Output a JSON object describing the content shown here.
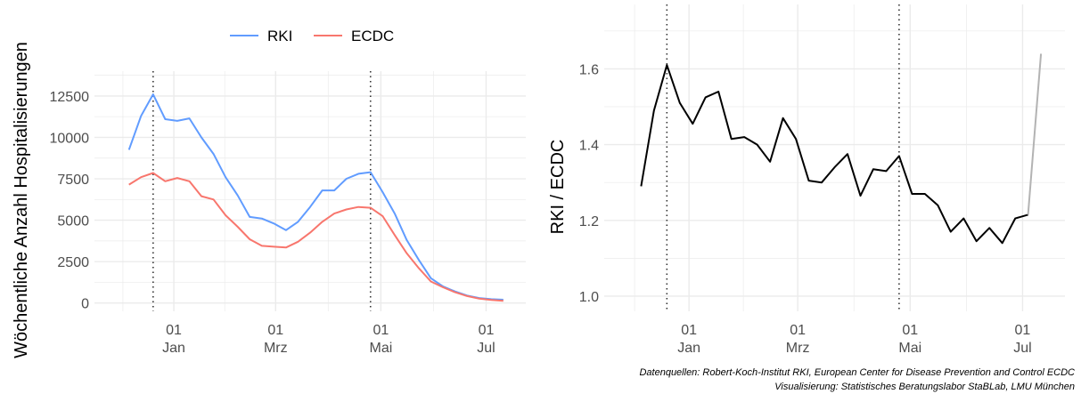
{
  "colors": {
    "rki": "#619cff",
    "ecdc": "#f8766d",
    "ratio": "#000000",
    "ratio_partial": "#b3b3b3",
    "grid": "#ebebeb",
    "vline": "#333333"
  },
  "caption": {
    "line1": "Datenquellen: Robert-Koch-Institut RKI, European Center for Disease Prevention and Control ECDC",
    "line2": "Visualisierung: Statistisches Beratungslabor StaBLab, LMU München"
  },
  "chart_data": [
    {
      "type": "line",
      "ylabel": "Wöchentliche Anzahl Hospitalisierungen",
      "xlabel": "",
      "legend_position": "top",
      "x_ticks": [
        {
          "date": "2022-01-01",
          "day": "01",
          "month": "Jan"
        },
        {
          "date": "2022-03-01",
          "day": "01",
          "month": "Mrz"
        },
        {
          "date": "2022-05-01",
          "day": "01",
          "month": "Mai"
        },
        {
          "date": "2022-07-01",
          "day": "01",
          "month": "Jul"
        }
      ],
      "y_ticks": [
        0,
        2500,
        5000,
        7500,
        10000,
        12500
      ],
      "ylim": [
        -500,
        14000
      ],
      "xlim": [
        "2021-11-16",
        "2022-07-24"
      ],
      "vlines": [
        "2021-12-20",
        "2022-04-25"
      ],
      "x": [
        "2021-12-06",
        "2021-12-13",
        "2021-12-20",
        "2021-12-27",
        "2022-01-03",
        "2022-01-10",
        "2022-01-17",
        "2022-01-24",
        "2022-01-31",
        "2022-02-07",
        "2022-02-14",
        "2022-02-21",
        "2022-02-28",
        "2022-03-07",
        "2022-03-14",
        "2022-03-21",
        "2022-03-28",
        "2022-04-04",
        "2022-04-11",
        "2022-04-18",
        "2022-04-25",
        "2022-05-02",
        "2022-05-09",
        "2022-05-16",
        "2022-05-23",
        "2022-05-30",
        "2022-06-06",
        "2022-06-13",
        "2022-06-20",
        "2022-06-27",
        "2022-07-04",
        "2022-07-11"
      ],
      "series": [
        {
          "name": "RKI",
          "values": [
            9250,
            11300,
            12600,
            11100,
            11000,
            11150,
            10000,
            9000,
            7600,
            6500,
            5200,
            5100,
            4800,
            4400,
            4900,
            5800,
            6800,
            6800,
            7500,
            7800,
            7900,
            6700,
            5400,
            3800,
            2600,
            1500,
            1000,
            700,
            450,
            300,
            230,
            200
          ]
        },
        {
          "name": "ECDC",
          "values": [
            7150,
            7600,
            7850,
            7350,
            7550,
            7350,
            6450,
            6250,
            5300,
            4600,
            3850,
            3450,
            3400,
            3350,
            3700,
            4250,
            4900,
            5400,
            5650,
            5800,
            5750,
            5250,
            4100,
            3000,
            2100,
            1300,
            950,
            650,
            420,
            260,
            190,
            130
          ]
        }
      ]
    },
    {
      "type": "line",
      "ylabel": "RKI / ECDC",
      "xlabel": "",
      "x_ticks": [
        {
          "date": "2022-01-01",
          "day": "01",
          "month": "Jan"
        },
        {
          "date": "2022-03-01",
          "day": "01",
          "month": "Mrz"
        },
        {
          "date": "2022-05-01",
          "day": "01",
          "month": "Mai"
        },
        {
          "date": "2022-07-01",
          "day": "01",
          "month": "Jul"
        }
      ],
      "y_ticks": [
        1.0,
        1.2,
        1.4,
        1.6
      ],
      "ylim": [
        0.96,
        1.77
      ],
      "xlim": [
        "2021-11-16",
        "2022-07-24"
      ],
      "vlines": [
        "2021-12-20",
        "2022-04-25"
      ],
      "x": [
        "2021-12-06",
        "2021-12-13",
        "2021-12-20",
        "2021-12-27",
        "2022-01-03",
        "2022-01-10",
        "2022-01-17",
        "2022-01-24",
        "2022-01-31",
        "2022-02-07",
        "2022-02-14",
        "2022-02-21",
        "2022-02-28",
        "2022-03-07",
        "2022-03-14",
        "2022-03-21",
        "2022-03-28",
        "2022-04-04",
        "2022-04-11",
        "2022-04-18",
        "2022-04-25",
        "2022-05-02",
        "2022-05-09",
        "2022-05-16",
        "2022-05-23",
        "2022-05-30",
        "2022-06-06",
        "2022-06-13",
        "2022-06-20",
        "2022-06-27",
        "2022-07-04",
        "2022-07-11"
      ],
      "series": [
        {
          "values": [
            1.29,
            1.49,
            1.61,
            1.51,
            1.455,
            1.525,
            1.54,
            1.415,
            1.42,
            1.4,
            1.355,
            1.47,
            1.415,
            1.305,
            1.3,
            1.34,
            1.375,
            1.265,
            1.335,
            1.33,
            1.37,
            1.27,
            1.27,
            1.24,
            1.17,
            1.205,
            1.145,
            1.18,
            1.14,
            1.205,
            1.215,
            1.64
          ],
          "partial_from_index": 30
        }
      ]
    }
  ]
}
